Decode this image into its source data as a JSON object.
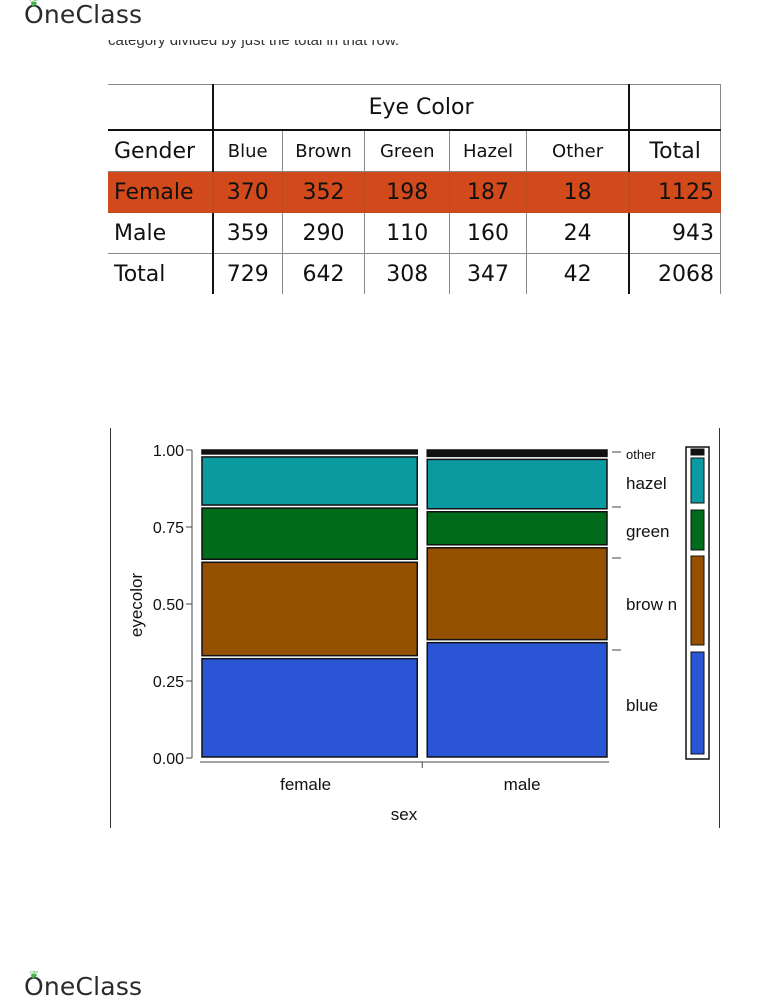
{
  "brand": {
    "name": "OneClass"
  },
  "intro_fragment": "category divided by just the total in that row.",
  "table": {
    "group_header": "Eye Color",
    "row_header": "Gender",
    "columns": [
      "Blue",
      "Brown",
      "Green",
      "Hazel",
      "Other"
    ],
    "total_header": "Total",
    "rows": [
      {
        "label": "Female",
        "values": [
          "370",
          "352",
          "198",
          "187",
          "18"
        ],
        "total": "1125"
      },
      {
        "label": "Male",
        "values": [
          "359",
          "290",
          "110",
          "160",
          "24"
        ],
        "total": "943"
      },
      {
        "label": "Total",
        "values": [
          "729",
          "642",
          "308",
          "347",
          "42"
        ],
        "total": "2068"
      }
    ],
    "highlight_color": "#d24a1c"
  },
  "chart_data": {
    "type": "mosaic",
    "xlabel": "sex",
    "ylabel": "eyecolor",
    "categories": [
      "female",
      "male"
    ],
    "category_widths": [
      0.544,
      0.456
    ],
    "ylim": [
      0,
      1
    ],
    "yticks": [
      "0.00",
      "0.25",
      "0.50",
      "0.75",
      "1.00"
    ],
    "series": [
      {
        "name": "blue",
        "color": "#2a56d6",
        "values": [
          0.329,
          0.381
        ]
      },
      {
        "name": "brown",
        "color": "#955000",
        "values": [
          0.313,
          0.308
        ]
      },
      {
        "name": "green",
        "color": "#006b1a",
        "values": [
          0.176,
          0.117
        ]
      },
      {
        "name": "hazel",
        "color": "#0b9aa0",
        "values": [
          0.166,
          0.17
        ]
      },
      {
        "name": "other",
        "color": "#111111",
        "values": [
          0.016,
          0.025
        ]
      }
    ],
    "legend_labels": [
      "other",
      "hazel",
      "green",
      "brow n",
      "blue"
    ],
    "legend_position": "right"
  }
}
